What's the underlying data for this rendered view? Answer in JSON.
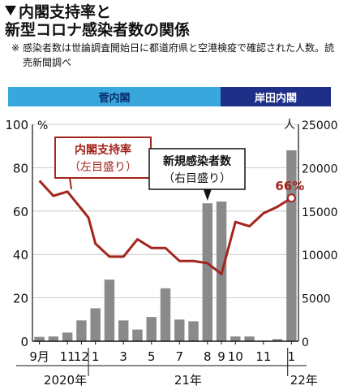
{
  "header": {
    "title_line1": "内閣支持率と",
    "title_line2": "新型コロナ感染者数の関係",
    "note_mark": "※",
    "note_text": "感染者数は世論調査開始日に都道府県と空港検疫で確認された人数。読売新聞調べ"
  },
  "cabinets": [
    {
      "name": "菅内閣",
      "color": "#38a8dc"
    },
    {
      "name": "岸田内閣",
      "color": "#1d2f87"
    }
  ],
  "chart_data": {
    "type": "bar+line",
    "left_axis": {
      "unit": "%",
      "ticks": [
        0,
        20,
        40,
        60,
        80,
        100
      ],
      "ylim": [
        0,
        100
      ]
    },
    "right_axis": {
      "unit": "人",
      "ticks": [
        0,
        5000,
        10000,
        15000,
        20000,
        25000
      ],
      "ylim": [
        0,
        25000
      ]
    },
    "x_month_labels": [
      {
        "label": "9月",
        "index": 0
      },
      {
        "label": "11",
        "index": 2
      },
      {
        "label": "12",
        "index": 3
      },
      {
        "label": "1",
        "index": 4
      },
      {
        "label": "3",
        "index": 6
      },
      {
        "label": "5",
        "index": 8
      },
      {
        "label": "7",
        "index": 10
      },
      {
        "label": "8",
        "index": 12
      },
      {
        "label": "9",
        "index": 13
      },
      {
        "label": "10",
        "index": 14
      },
      {
        "label": "11",
        "index": 16
      },
      {
        "label": "1",
        "index": 18
      }
    ],
    "year_labels": [
      "2020年",
      "21年",
      "22年"
    ],
    "series": [
      {
        "name": "新規感染者数",
        "axis": "right",
        "kind": "bar",
        "color": "#8a8a8a",
        "values": [
          500,
          550,
          1000,
          2400,
          3800,
          7100,
          2400,
          1350,
          2800,
          6100,
          2500,
          2300,
          15900,
          16100,
          550,
          550,
          80,
          250,
          22000
        ]
      },
      {
        "name": "内閣支持率",
        "axis": "left",
        "kind": "line",
        "color": "#a3261e",
        "x": [
          0,
          1,
          2,
          3,
          3.5,
          4,
          5,
          6,
          7,
          8,
          9,
          10,
          11,
          12,
          13,
          14,
          15,
          16,
          17,
          18
        ],
        "values": [
          74,
          67,
          69,
          61,
          57,
          45,
          39,
          39,
          47,
          43,
          43,
          37,
          37,
          36,
          31,
          55,
          53,
          59,
          62,
          66
        ]
      }
    ],
    "annotations": {
      "approval_label": "内閣支持率",
      "approval_sub": "（左目盛り）",
      "cases_label": "新規感染者数",
      "cases_sub": "（右目盛り）",
      "last_value_label": "66%"
    }
  }
}
